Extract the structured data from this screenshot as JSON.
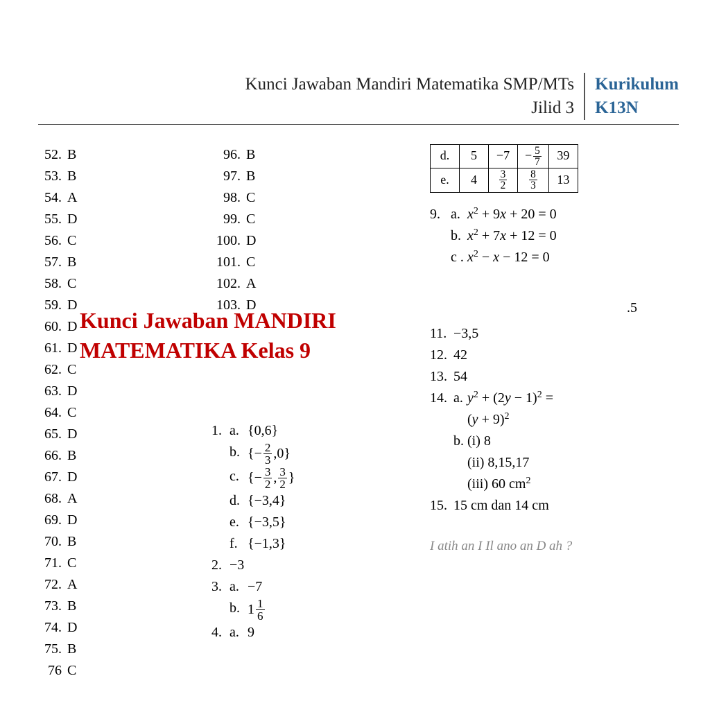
{
  "header": {
    "title_line1": "Kunci Jawaban Mandiri Matematika SMP/MTs",
    "title_line2": "Jilid 3",
    "right_line1": "Kurikulum",
    "right_line2": "K13N"
  },
  "watermark": {
    "line1": "Kunci Jawaban MANDIRI",
    "line2": "MATEMATIKA Kelas 9"
  },
  "col1": [
    {
      "n": "52.",
      "a": "B"
    },
    {
      "n": "53.",
      "a": "B"
    },
    {
      "n": "54.",
      "a": "A"
    },
    {
      "n": "55.",
      "a": "D"
    },
    {
      "n": "56.",
      "a": "C"
    },
    {
      "n": "57.",
      "a": "B"
    },
    {
      "n": "58.",
      "a": "C"
    },
    {
      "n": "59.",
      "a": "D"
    },
    {
      "n": "60.",
      "a": "D"
    },
    {
      "n": "61.",
      "a": "D"
    },
    {
      "n": "62.",
      "a": "C"
    },
    {
      "n": "63.",
      "a": "D"
    },
    {
      "n": "64.",
      "a": "C"
    },
    {
      "n": "65.",
      "a": "D"
    },
    {
      "n": "66.",
      "a": "B"
    },
    {
      "n": "67.",
      "a": "D"
    },
    {
      "n": "68.",
      "a": "A"
    },
    {
      "n": "69.",
      "a": "D"
    },
    {
      "n": "70.",
      "a": "B"
    },
    {
      "n": "71.",
      "a": "C"
    },
    {
      "n": "72.",
      "a": "A"
    },
    {
      "n": "73.",
      "a": "B"
    },
    {
      "n": "74.",
      "a": "D"
    },
    {
      "n": "75.",
      "a": "B"
    },
    {
      "n": "76",
      "a": "C"
    }
  ],
  "col2_top": [
    {
      "n": "96.",
      "a": "B"
    },
    {
      "n": "97.",
      "a": "B"
    },
    {
      "n": "98.",
      "a": "C"
    },
    {
      "n": "99.",
      "a": "C"
    },
    {
      "n": "100.",
      "a": "D"
    },
    {
      "n": "101.",
      "a": "C"
    },
    {
      "n": "102.",
      "a": "A"
    },
    {
      "n": "103.",
      "a": "D"
    }
  ],
  "col2_list": {
    "item1": {
      "num": "1.",
      "a": "a.",
      "a_val": "{0,6}",
      "b": "b.",
      "c": "c.",
      "d": "d.",
      "d_val": "{−3,4}",
      "e": "e.",
      "e_val": "{−3,5}",
      "f": "f.",
      "f_val": "{−1,3}"
    },
    "item2": {
      "num": "2.",
      "val": "−3"
    },
    "item3": {
      "num": "3.",
      "a": "a.",
      "a_val": "−7",
      "b": "b."
    },
    "item4": {
      "num": "4.",
      "a": "a.",
      "a_val": "9"
    }
  },
  "table": {
    "rows": [
      [
        "d.",
        "5",
        "−7",
        "-5/7",
        "39"
      ],
      [
        "e.",
        "4",
        "3/2",
        "8/3",
        "13"
      ]
    ]
  },
  "q9": {
    "num": "9.",
    "a": "a.",
    "a_val": "x² + 9x + 20 = 0",
    "b": "b.",
    "b_val": "x² + 7x + 12 = 0",
    "c": "c .",
    "c_val": "x² − x − 12 = 0"
  },
  "stray5": ".5",
  "r3": {
    "i11": {
      "n": "11.",
      "v": "−3,5"
    },
    "i12": {
      "n": "12.",
      "v": "42"
    },
    "i13": {
      "n": "13.",
      "v": "54"
    },
    "i14": {
      "n": "14.",
      "a": "a.",
      "a_val": "y² + (2y − 1)² =",
      "a2": "(y + 9)²",
      "b": "b.",
      "b1": "(i) 8",
      "b2": "(ii) 8,15,17",
      "b3": "(iii) 60 cm²"
    },
    "i15": {
      "n": "15.",
      "v": "15 cm dan 14 cm"
    }
  },
  "footer": "Latihan Ulangan Bab 2",
  "colors": {
    "accent": "#2a6496",
    "watermark": "#c00000",
    "text": "#000000",
    "bg": "#ffffff"
  }
}
